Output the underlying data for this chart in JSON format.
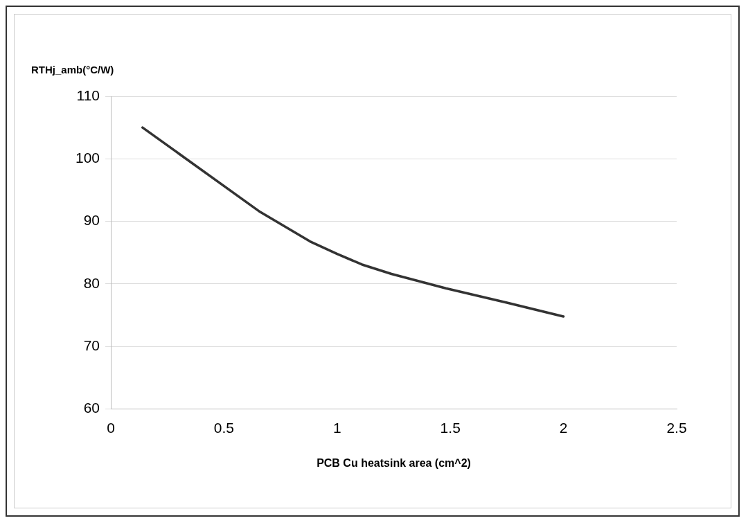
{
  "chart_data": {
    "type": "line",
    "xlabel": "PCB Cu heatsink area (cm^2)",
    "ylabel": "RTHj_amb(°C/W)",
    "series": [
      {
        "color": "#333333",
        "x": [
          0.14,
          0.66,
          0.88,
          1.0,
          1.11,
          1.24,
          1.48,
          1.75,
          2.0
        ],
        "values": [
          105,
          91.5,
          86.8,
          84.8,
          83.1,
          81.6,
          79.3,
          77,
          74.8
        ]
      }
    ],
    "xlim": [
      0,
      2.5
    ],
    "xticks": [
      0,
      0.5,
      1,
      1.5,
      2,
      2.5
    ],
    "ylim": [
      60,
      110
    ],
    "yticks": [
      60,
      70,
      80,
      90,
      100,
      110
    ],
    "grid": "y",
    "legend": false,
    "marker": "none",
    "line_style": "solid"
  }
}
